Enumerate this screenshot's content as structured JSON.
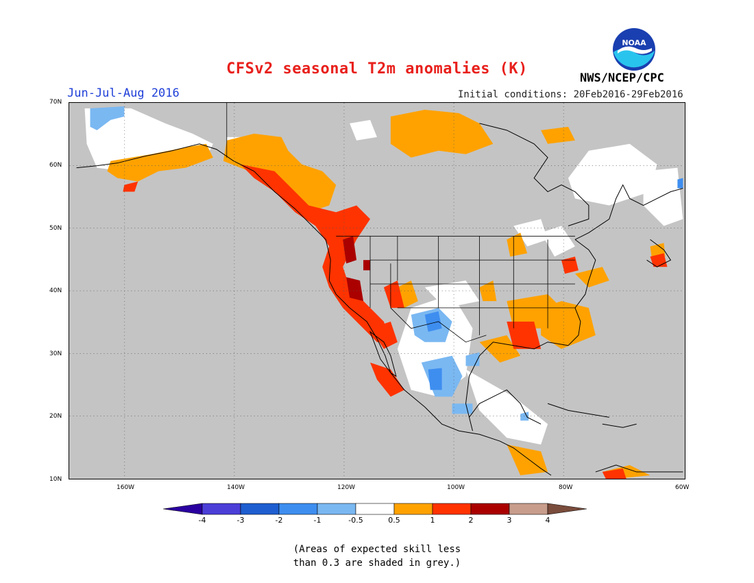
{
  "title": "CFSv2 seasonal T2m anomalies (K)",
  "season": "Jun-Jul-Aug 2016",
  "initial_conditions": "Initial conditions: 20Feb2016-29Feb2016",
  "agency": "NWS/NCEP/CPC",
  "logo_text": "NOAA",
  "map": {
    "lon_range": [
      -172,
      -60
    ],
    "lat_range": [
      10,
      70
    ],
    "lat_ticks": [
      "70N",
      "60N",
      "50N",
      "40N",
      "30N",
      "20N",
      "10N"
    ],
    "lon_ticks": [
      "160W",
      "140W",
      "120W",
      "100W",
      "80W",
      "60W"
    ],
    "grid": "dotted",
    "colors": {
      "grey_low_skill": "#c4c4c4",
      "neutral": "#ffffff",
      "anom_0_5_to_1": "#ffa200",
      "anom_1_to_2": "#ff3300",
      "anom_2_to_3": "#aa0000",
      "anom_-1_to_-0_5": "#7ab8f2",
      "anom_-2_to_-1": "#3e8ef0"
    }
  },
  "colorbar": {
    "labels": [
      "-4",
      "-3",
      "-2",
      "-1",
      "-0.5",
      "0.5",
      "1",
      "2",
      "3",
      "4"
    ],
    "colors": [
      "#2a00a0",
      "#4b3fd8",
      "#1e5ed0",
      "#3e8ef0",
      "#7ab8f2",
      "#ffffff",
      "#ffa200",
      "#ff3300",
      "#aa0000",
      "#c89d8c",
      "#7a4c3c"
    ]
  },
  "note_line1": "(Areas of expected skill less",
  "note_line2": "than 0.3 are shaded in grey.)"
}
